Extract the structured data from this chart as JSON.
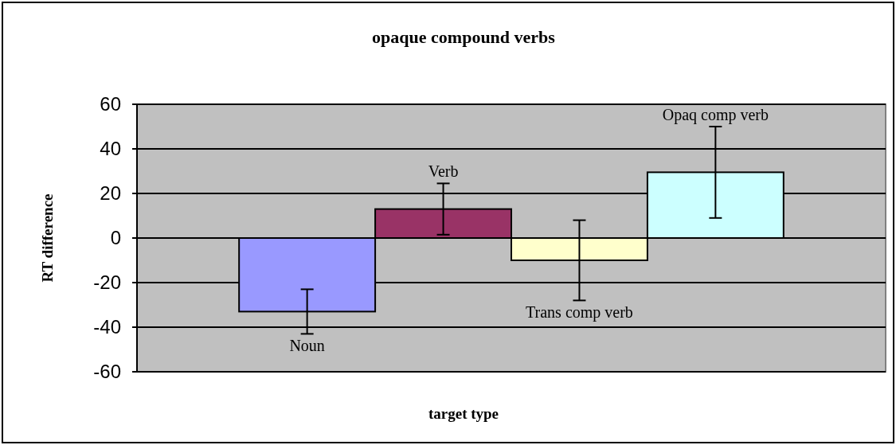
{
  "chart_data": {
    "type": "bar",
    "title": "opaque compound verbs",
    "xlabel": "target type",
    "ylabel": "RT difference",
    "categories": [
      "Noun",
      "Verb",
      "Trans comp verb",
      "Opaq comp verb"
    ],
    "values": [
      -33,
      13,
      -10,
      29.5
    ],
    "colors": [
      "#9999ff",
      "#993366",
      "#ffffcc",
      "#ccffff"
    ],
    "errors": [
      10,
      11.5,
      18,
      20.5
    ],
    "ylim": [
      -60,
      60
    ],
    "yticks": [
      -60,
      -40,
      -20,
      0,
      20,
      40,
      60
    ],
    "grid": "y"
  }
}
